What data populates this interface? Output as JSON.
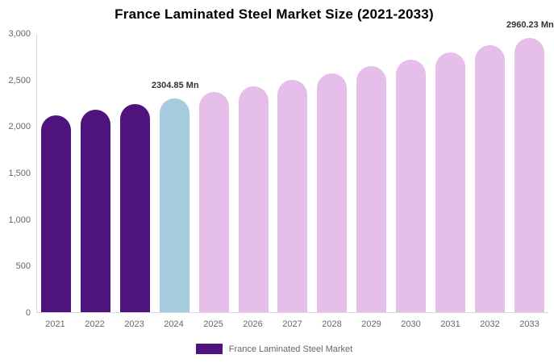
{
  "chart_data": {
    "type": "bar",
    "title": "France Laminated Steel Market Size (2021-2033)",
    "unit": "Mn",
    "categories": [
      "2021",
      "2022",
      "2023",
      "2024",
      "2025",
      "2026",
      "2027",
      "2028",
      "2029",
      "2030",
      "2031",
      "2032",
      "2033"
    ],
    "values": [
      2120.4,
      2180.2,
      2241.7,
      2304.85,
      2369.8,
      2436.6,
      2505.3,
      2576.0,
      2648.6,
      2723.3,
      2800.0,
      2879.0,
      2960.23
    ],
    "bar_colors": [
      "#4F137D",
      "#4F137D",
      "#4F137D",
      "#A6CBDF",
      "#E5BEE9",
      "#E5BEE9",
      "#E5BEE9",
      "#E5BEE9",
      "#E5BEE9",
      "#E5BEE9",
      "#E5BEE9",
      "#E5BEE9",
      "#E5BEE9"
    ],
    "ylim": [
      0,
      3000
    ],
    "yticks": [
      3000,
      2500,
      2000,
      1500,
      1000,
      500,
      0
    ],
    "ytick_labels": [
      "3,000",
      "2,500",
      "2,000",
      "1,500",
      "1,000",
      "500",
      "0"
    ],
    "grid": false,
    "legend_position": "bottom",
    "annotations": [
      {
        "category": "2024",
        "text": "2304.85 Mn"
      },
      {
        "category": "2033",
        "text": "2960.23 Mn"
      }
    ]
  },
  "legend": {
    "label": "France Laminated Steel Market",
    "swatch_color": "#4F137D"
  },
  "colors": {
    "historical_bar": "#4F137D",
    "highlight_bar": "#A6CBDF",
    "forecast_bar": "#E5BEE9",
    "axis_line": "#d9d9d9",
    "tick_text": "#666666",
    "annotation_text": "#333333",
    "title_text": "#000000"
  }
}
